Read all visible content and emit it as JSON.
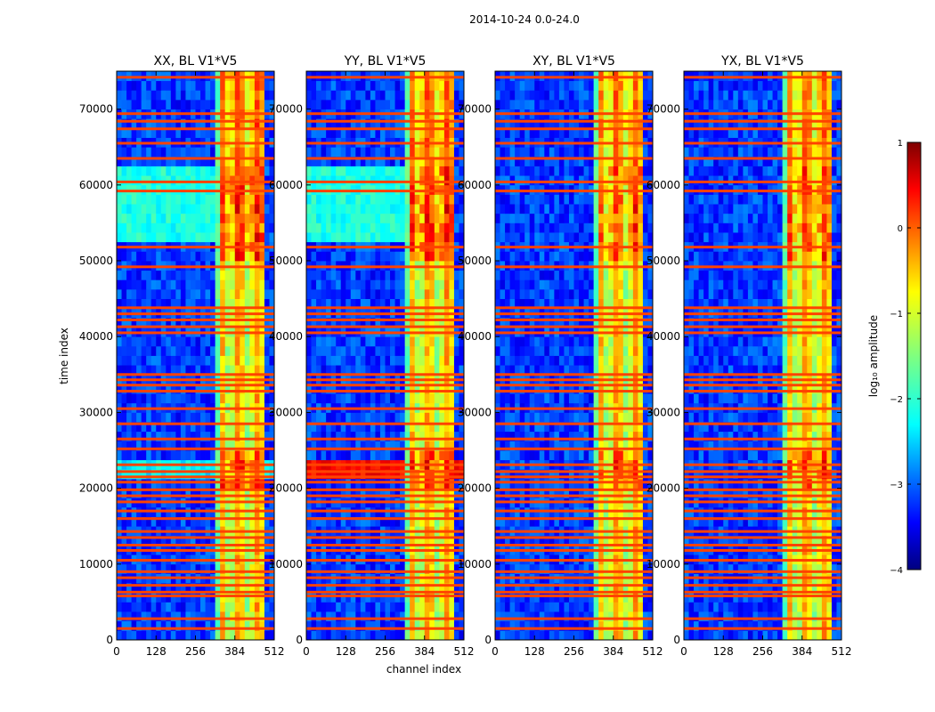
{
  "chart_data": {
    "type": "heatmap",
    "suptitle": "2014-10-24 0.0-24.0",
    "xlabel": "channel index",
    "ylabel": "time index",
    "xlim": [
      0,
      512
    ],
    "ylim": [
      0,
      75000
    ],
    "x_ticks": [
      "0",
      "128",
      "256",
      "384",
      "512"
    ],
    "x_tick_values": [
      0,
      128,
      256,
      384,
      512
    ],
    "y_ticks": [
      "0",
      "10000",
      "20000",
      "30000",
      "40000",
      "50000",
      "60000",
      "70000"
    ],
    "y_tick_values": [
      0,
      10000,
      20000,
      30000,
      40000,
      50000,
      60000,
      70000
    ],
    "panels": [
      {
        "title": "XX, BL V1*V5",
        "pol": "XX",
        "strong_band": true,
        "hot_rows": false
      },
      {
        "title": "YY, BL V1*V5",
        "pol": "YY",
        "strong_band": true,
        "hot_rows": true
      },
      {
        "title": "XY, BL V1*V5",
        "pol": "XY",
        "strong_band": false,
        "hot_rows": false
      },
      {
        "title": "YX, BL V1*V5",
        "pol": "YX",
        "strong_band": false,
        "hot_rows": false
      }
    ],
    "colorbar": {
      "label": "log₁₀ amplitude",
      "range": [
        -4,
        1
      ],
      "ticks": [
        "1",
        "0",
        "−1",
        "−2",
        "−3",
        "−4"
      ],
      "tick_values": [
        1,
        0,
        -1,
        -2,
        -3,
        -4
      ],
      "colormap": "jet"
    },
    "features": {
      "rfi_channel_band": [
        320,
        480
      ],
      "bright_time_blocks": [
        [
          52000,
          62000
        ],
        [
          21000,
          24000
        ]
      ],
      "flagged_time_rows": [
        1500,
        2800,
        5800,
        6300,
        7200,
        8200,
        9000,
        10500,
        11800,
        12500,
        13500,
        14300,
        16000,
        17000,
        18200,
        19000,
        19800,
        20800,
        21500,
        22200,
        23100,
        25200,
        26500,
        28500,
        30500,
        32800,
        33600,
        34300,
        35000,
        40500,
        41300,
        42200,
        43000,
        43800,
        49200,
        51800,
        59200,
        60400,
        63500,
        65500,
        67400,
        68400,
        69400,
        74200
      ]
    }
  }
}
